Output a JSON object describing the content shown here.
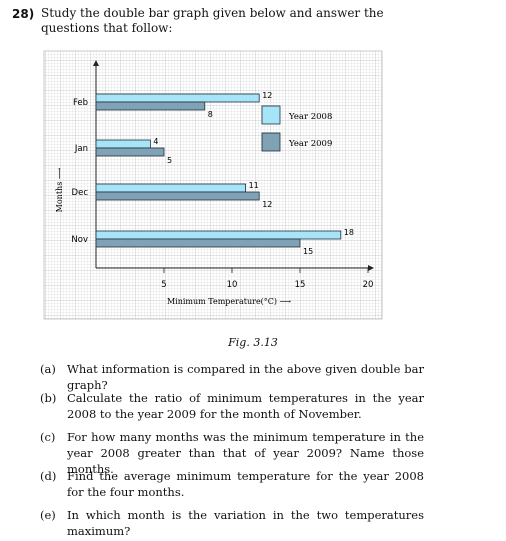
{
  "question": {
    "number": "28)",
    "text": "Study the double bar graph given below and answer the questions that follow:"
  },
  "chart_data": {
    "type": "bar",
    "orientation": "horizontal",
    "categories": [
      "Nov",
      "Dec",
      "Jan",
      "Feb"
    ],
    "series": [
      {
        "name": "Year 2008",
        "values": [
          18,
          11,
          4,
          12
        ],
        "color": "#a8e4f8"
      },
      {
        "name": "Year 2009",
        "values": [
          15,
          12,
          5,
          8
        ],
        "color": "#7fa2b4"
      }
    ],
    "xlabel": "Minimum Temperature(°C) ⟶",
    "ylabel": "Months ⟶",
    "xticks": [
      5,
      10,
      15,
      20
    ],
    "xlim": [
      0,
      22
    ],
    "grid": true,
    "legend": "top-right"
  },
  "caption": "Fig. 3.13",
  "subquestions": [
    {
      "label": "(a)",
      "text": "What information is compared in the above given double bar graph?"
    },
    {
      "label": "(b)",
      "text": "Calculate the ratio of minimum temperatures in the year 2008 to the year 2009 for the month of November."
    },
    {
      "label": "(c)",
      "text": "For how many months was the minimum temperature in the year 2008 greater than that of year 2009? Name those months."
    },
    {
      "label": "(d)",
      "text": "Find the average minimum temperature for the year 2008 for the four months."
    },
    {
      "label": "(e)",
      "text": "In which month is the variation in the two temperatures maximum?"
    }
  ]
}
